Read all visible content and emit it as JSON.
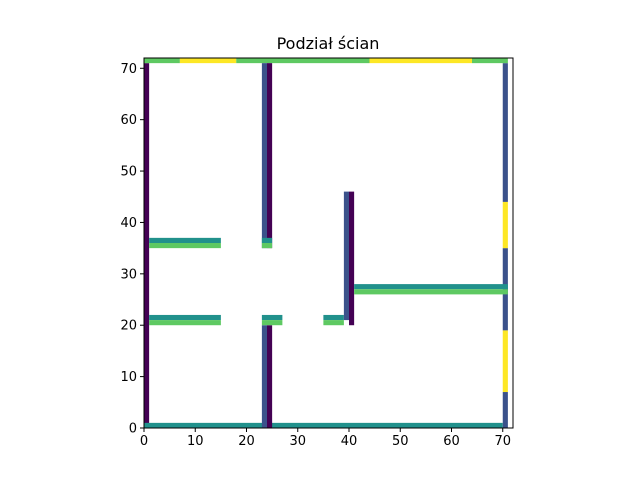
{
  "chart_data": {
    "type": "heatmap",
    "title": "Podział ścian",
    "xlabel": "",
    "ylabel": "",
    "xlim": [
      0,
      72
    ],
    "ylim": [
      0,
      72
    ],
    "x_ticks": [
      0,
      10,
      20,
      30,
      40,
      50,
      60,
      70
    ],
    "y_ticks": [
      0,
      10,
      20,
      30,
      40,
      50,
      60,
      70
    ],
    "grid": false,
    "colormap": "viridis",
    "colors": {
      "dark": "#440154",
      "blue": "#3b528b",
      "teal": "#21918c",
      "green": "#5ec962",
      "yellow": "#fde725"
    },
    "segments": [
      {
        "x0": 0,
        "x1": 1,
        "y0": 0,
        "y1": 71,
        "color": "dark"
      },
      {
        "x0": 0,
        "x1": 70,
        "y0": 0,
        "y1": 1,
        "color": "teal"
      },
      {
        "x0": 70,
        "x1": 71,
        "y0": 0,
        "y1": 7,
        "color": "blue"
      },
      {
        "x0": 70,
        "x1": 71,
        "y0": 7,
        "y1": 19,
        "color": "yellow"
      },
      {
        "x0": 70,
        "x1": 71,
        "y0": 19,
        "y1": 35,
        "color": "blue"
      },
      {
        "x0": 70,
        "x1": 71,
        "y0": 35,
        "y1": 44,
        "color": "yellow"
      },
      {
        "x0": 70,
        "x1": 71,
        "y0": 44,
        "y1": 71,
        "color": "blue"
      },
      {
        "x0": 0,
        "x1": 7,
        "y0": 71,
        "y1": 72,
        "color": "green"
      },
      {
        "x0": 7,
        "x1": 18,
        "y0": 71,
        "y1": 72,
        "color": "yellow"
      },
      {
        "x0": 18,
        "x1": 44,
        "y0": 71,
        "y1": 72,
        "color": "green"
      },
      {
        "x0": 44,
        "x1": 64,
        "y0": 71,
        "y1": 72,
        "color": "yellow"
      },
      {
        "x0": 64,
        "x1": 71,
        "y0": 71,
        "y1": 72,
        "color": "green"
      },
      {
        "x0": 23,
        "x1": 24,
        "y0": 35,
        "y1": 71,
        "color": "blue"
      },
      {
        "x0": 24,
        "x1": 25,
        "y0": 35,
        "y1": 71,
        "color": "dark"
      },
      {
        "x0": 23,
        "x1": 24,
        "y0": 0,
        "y1": 20,
        "color": "blue"
      },
      {
        "x0": 24,
        "x1": 25,
        "y0": 0,
        "y1": 20,
        "color": "dark"
      },
      {
        "x0": 1,
        "x1": 15,
        "y0": 36,
        "y1": 37,
        "color": "teal"
      },
      {
        "x0": 1,
        "x1": 15,
        "y0": 35,
        "y1": 36,
        "color": "green"
      },
      {
        "x0": 23,
        "x1": 25,
        "y0": 36,
        "y1": 37,
        "color": "teal"
      },
      {
        "x0": 23,
        "x1": 25,
        "y0": 35,
        "y1": 36,
        "color": "green"
      },
      {
        "x0": 1,
        "x1": 15,
        "y0": 21,
        "y1": 22,
        "color": "teal"
      },
      {
        "x0": 1,
        "x1": 15,
        "y0": 20,
        "y1": 21,
        "color": "green"
      },
      {
        "x0": 23,
        "x1": 27,
        "y0": 21,
        "y1": 22,
        "color": "teal"
      },
      {
        "x0": 23,
        "x1": 27,
        "y0": 20,
        "y1": 21,
        "color": "green"
      },
      {
        "x0": 35,
        "x1": 39,
        "y0": 21,
        "y1": 22,
        "color": "teal"
      },
      {
        "x0": 35,
        "x1": 39,
        "y0": 20,
        "y1": 21,
        "color": "green"
      },
      {
        "x0": 39,
        "x1": 40,
        "y0": 21,
        "y1": 46,
        "color": "blue"
      },
      {
        "x0": 40,
        "x1": 41,
        "y0": 20,
        "y1": 46,
        "color": "dark"
      },
      {
        "x0": 41,
        "x1": 71,
        "y0": 27,
        "y1": 28,
        "color": "teal"
      },
      {
        "x0": 41,
        "x1": 71,
        "y0": 26,
        "y1": 27,
        "color": "green"
      }
    ]
  }
}
